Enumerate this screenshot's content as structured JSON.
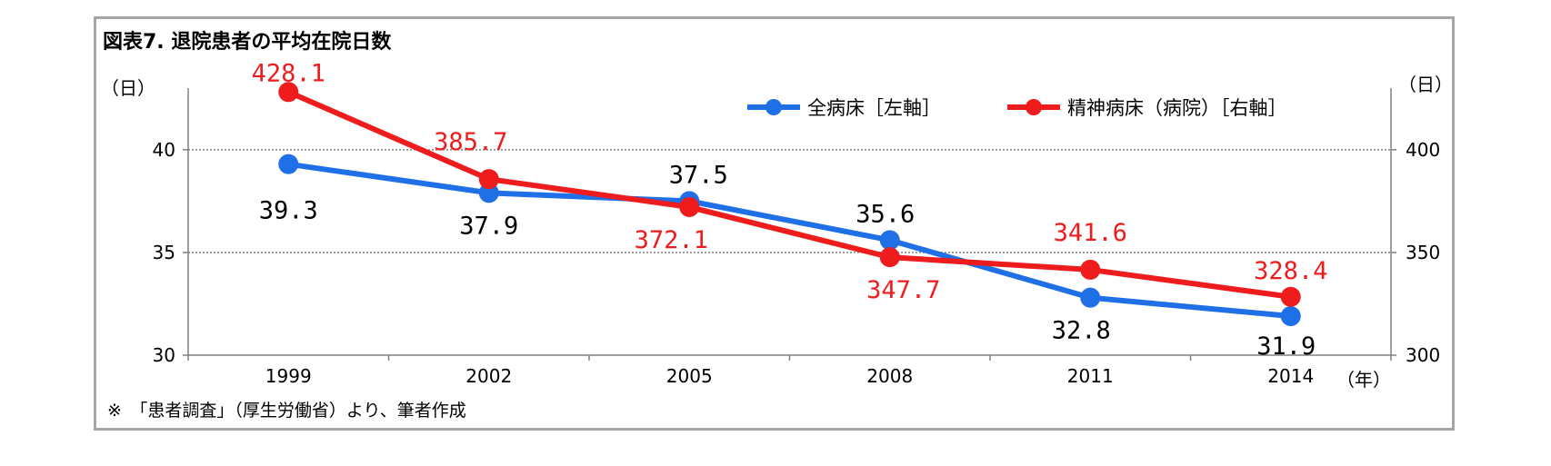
{
  "chart_data": {
    "type": "line",
    "title": "図表7. 退院患者の平均在院日数",
    "categories": [
      "1999",
      "2002",
      "2005",
      "2008",
      "2011",
      "2014"
    ],
    "x_unit": "（年）",
    "y_left": {
      "unit": "（日）",
      "range": [
        30,
        43
      ],
      "ticks": [
        30,
        35,
        40
      ]
    },
    "y_right": {
      "unit": "（日）",
      "range": [
        300,
        430
      ],
      "ticks": [
        300,
        350,
        400
      ]
    },
    "grid": true,
    "legend_position": "top-right",
    "series": [
      {
        "name": "全病床［左軸］",
        "axis": "left",
        "color": "#1f6fe6",
        "values": [
          39.3,
          37.9,
          37.5,
          35.6,
          32.8,
          31.9
        ],
        "labels": [
          "39.3",
          "37.9",
          "37.5",
          "35.6",
          "32.8",
          "31.9"
        ]
      },
      {
        "name": "精神病床（病院）［右軸］",
        "axis": "right",
        "color": "#ee1c1c",
        "values": [
          428.1,
          385.7,
          372.1,
          347.7,
          341.6,
          328.4
        ],
        "labels": [
          "428.1",
          "385.7",
          "372.1",
          "347.7",
          "341.6",
          "328.4"
        ]
      }
    ],
    "note": "※　「患者調査」（厚生労働省）より、筆者作成"
  }
}
